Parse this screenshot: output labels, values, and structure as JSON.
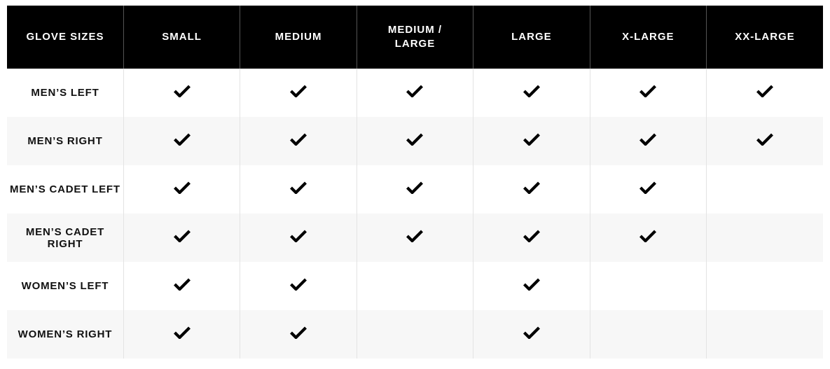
{
  "headers": [
    "GLOVE SIZES",
    "SMALL",
    "MEDIUM",
    "MEDIUM / LARGE",
    "LARGE",
    "X-LARGE",
    "XX-LARGE"
  ],
  "rows": [
    {
      "label": "MEN’S LEFT",
      "sizes": [
        true,
        true,
        true,
        true,
        true,
        true
      ]
    },
    {
      "label": "MEN’S RIGHT",
      "sizes": [
        true,
        true,
        true,
        true,
        true,
        true
      ]
    },
    {
      "label": "MEN’S CADET LEFT",
      "sizes": [
        true,
        true,
        true,
        true,
        true,
        false
      ]
    },
    {
      "label": "MEN’S CADET RIGHT",
      "sizes": [
        true,
        true,
        true,
        true,
        true,
        false
      ]
    },
    {
      "label": "WOMEN’S LEFT",
      "sizes": [
        true,
        true,
        false,
        true,
        false,
        false
      ]
    },
    {
      "label": "WOMEN’S RIGHT",
      "sizes": [
        true,
        true,
        false,
        true,
        false,
        false
      ]
    }
  ],
  "icons": {
    "available": "checkmark-icon"
  },
  "colors": {
    "header_bg": "#000000",
    "header_text": "#ffffff",
    "stripe": "#f7f7f7"
  }
}
